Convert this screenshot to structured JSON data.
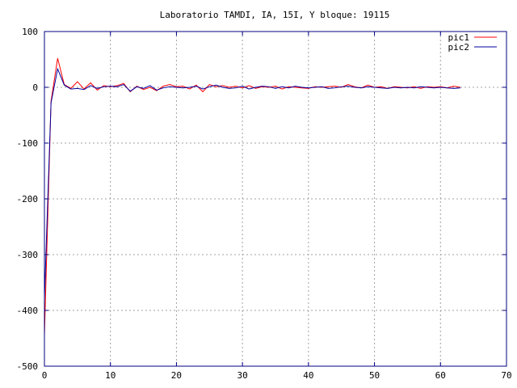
{
  "chart_data": {
    "type": "line",
    "title": "Laboratorio TAMDI, IA, 15I, Y bloque: 19115",
    "xlabel": "",
    "ylabel": "",
    "xlim": [
      0,
      70
    ],
    "ylim": [
      -500,
      100
    ],
    "xticks": [
      0,
      10,
      20,
      30,
      40,
      50,
      60,
      70
    ],
    "yticks": [
      -500,
      -400,
      -300,
      -200,
      -100,
      0,
      100
    ],
    "grid": true,
    "legend_position": "top-right",
    "series": [
      {
        "name": "pic1",
        "color": "#ff0000",
        "x": [
          0,
          1,
          2,
          3,
          4,
          5,
          6,
          7,
          8,
          9,
          10,
          11,
          12,
          13,
          14,
          15,
          16,
          17,
          18,
          19,
          20,
          21,
          22,
          23,
          24,
          25,
          26,
          27,
          28,
          29,
          30,
          31,
          32,
          33,
          34,
          35,
          36,
          37,
          38,
          39,
          40,
          41,
          42,
          43,
          44,
          45,
          46,
          47,
          48,
          49,
          50,
          51,
          52,
          53,
          54,
          55,
          56,
          57,
          58,
          59,
          60,
          61,
          62,
          63
        ],
        "values": [
          -445,
          -25,
          52,
          5,
          -2,
          10,
          -3,
          8,
          -5,
          3,
          1,
          3,
          7,
          -8,
          2,
          -4,
          0,
          -6,
          2,
          5,
          1,
          2,
          -3,
          4,
          -8,
          5,
          1,
          3,
          0,
          2,
          -1,
          3,
          -2,
          1,
          0,
          2,
          -3,
          1,
          0,
          -1,
          -2,
          1,
          0,
          1,
          2,
          0,
          5,
          1,
          -1,
          4,
          0,
          1,
          -2,
          1,
          0,
          -1,
          1,
          -2,
          1,
          0,
          1,
          -1,
          2,
          0
        ]
      },
      {
        "name": "pic2",
        "color": "#0000a0",
        "x": [
          0,
          1,
          2,
          3,
          4,
          5,
          6,
          7,
          8,
          9,
          10,
          11,
          12,
          13,
          14,
          15,
          16,
          17,
          18,
          19,
          20,
          21,
          22,
          23,
          24,
          25,
          26,
          27,
          28,
          29,
          30,
          31,
          32,
          33,
          34,
          35,
          36,
          37,
          38,
          39,
          40,
          41,
          42,
          43,
          44,
          45,
          46,
          47,
          48,
          49,
          50,
          51,
          52,
          53,
          54,
          55,
          56,
          57,
          58,
          59,
          60,
          61,
          62,
          63
        ],
        "values": [
          -380,
          -28,
          33,
          4,
          -3,
          -2,
          -4,
          3,
          -2,
          1,
          2,
          1,
          5,
          -7,
          1,
          -2,
          3,
          -5,
          -1,
          1,
          0,
          -1,
          0,
          2,
          -3,
          1,
          4,
          0,
          -2,
          -1,
          2,
          -3,
          0,
          2,
          1,
          -2,
          1,
          -1,
          2,
          0,
          -1,
          0,
          1,
          -2,
          -1,
          1,
          2,
          0,
          -1,
          1,
          0,
          -1,
          -2,
          0,
          -1,
          0,
          -1,
          1,
          0,
          -1,
          0,
          -1,
          -2,
          -1
        ]
      }
    ]
  }
}
